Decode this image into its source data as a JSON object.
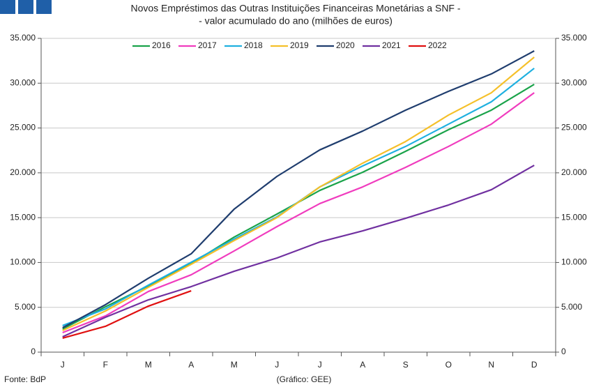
{
  "chart_data": {
    "type": "line",
    "title": "Novos Empréstimos das Outras Instituições Financeiras Monetárias a SNF -",
    "subtitle": "- valor acumulado do ano (milhões de euros)",
    "annotations": [
      "Fonte: BdP",
      "(Gráfico: GEE)"
    ],
    "categories": [
      "J",
      "F",
      "M",
      "A",
      "M",
      "J",
      "J",
      "A",
      "S",
      "O",
      "N",
      "D"
    ],
    "series": [
      {
        "name": "2016",
        "color": "#1aa34a",
        "values": [
          2570,
          5060,
          7390,
          9880,
          12830,
          15400,
          18040,
          20070,
          22400,
          24810,
          26990,
          29870
        ]
      },
      {
        "name": "2017",
        "color": "#f03cbe",
        "values": [
          2180,
          4040,
          6760,
          8630,
          11280,
          14000,
          16570,
          18430,
          20610,
          22940,
          25430,
          28930
        ]
      },
      {
        "name": "2018",
        "color": "#1fb0e0",
        "values": [
          2960,
          4820,
          7470,
          10030,
          12600,
          15090,
          18430,
          20770,
          22940,
          25430,
          27920,
          31660
        ]
      },
      {
        "name": "2019",
        "color": "#f5c02a",
        "values": [
          2410,
          4590,
          7230,
          9800,
          12440,
          15010,
          18430,
          21080,
          23490,
          26440,
          28930,
          32900
        ]
      },
      {
        "name": "2020",
        "color": "#1f3d6e",
        "values": [
          2720,
          5290,
          8240,
          10970,
          15940,
          19600,
          22560,
          24660,
          26990,
          29090,
          31030,
          33600
        ]
      },
      {
        "name": "2021",
        "color": "#7030a0",
        "values": [
          1710,
          3890,
          5830,
          7310,
          9020,
          10500,
          12290,
          13530,
          14930,
          16410,
          18120,
          20840
        ]
      },
      {
        "name": "2022",
        "color": "#e01010",
        "values": [
          1560,
          2880,
          5130,
          6840,
          null,
          null,
          null,
          null,
          null,
          null,
          null,
          null
        ]
      }
    ],
    "ylim": [
      0,
      35000
    ],
    "yticks": [
      0,
      {
        "value": 5000,
        "label": "5.000"
      },
      {
        "value": 10000,
        "label": "10.000"
      },
      {
        "value": 15000,
        "label": "15.000"
      },
      {
        "value": 20000,
        "label": "20.000"
      },
      {
        "value": 25000,
        "label": "25.000"
      },
      {
        "value": 30000,
        "label": "30.000"
      },
      {
        "value": 35000,
        "label": "35.000"
      }
    ],
    "y2lim": [
      0,
      35000
    ],
    "y2ticks": [
      0,
      {
        "value": 5000,
        "label": "5.000"
      },
      {
        "value": 10000,
        "label": "10.000"
      },
      {
        "value": 15000,
        "label": "15.000"
      },
      {
        "value": 20000,
        "label": "20.000"
      },
      {
        "value": 25000,
        "label": "25.000"
      },
      {
        "value": 30000,
        "label": "30.000"
      },
      {
        "value": 35000,
        "label": "35.000"
      }
    ],
    "grid": true,
    "legend": "top"
  }
}
